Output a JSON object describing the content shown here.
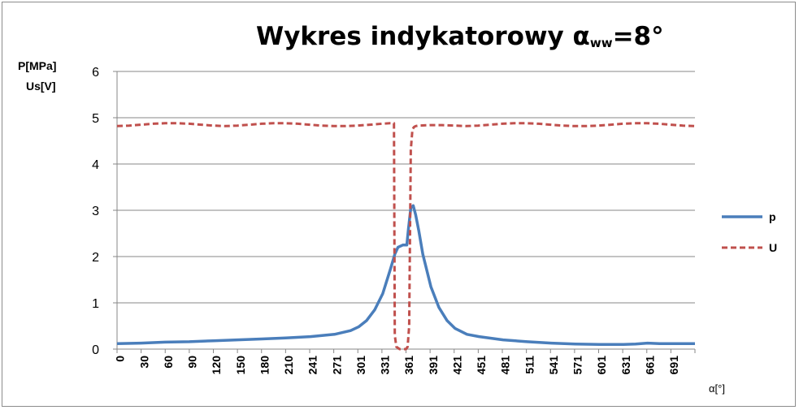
{
  "chart_data": {
    "type": "line",
    "title_main": "Wykres  indykatorowy ",
    "title_alpha": "α",
    "title_sub": "ww",
    "title_tail": "=8°",
    "ylabel_line1": "P[MPa]",
    "ylabel_line2": "Us[V]",
    "xlabel": "α[°]",
    "ylim": [
      0,
      6
    ],
    "yticks": [
      "0",
      "1",
      "2",
      "3",
      "4",
      "5",
      "6"
    ],
    "xlim": [
      0,
      720
    ],
    "xtick_labels": [
      "0",
      "30",
      "60",
      "90",
      "120",
      "150",
      "180",
      "210",
      "241",
      "271",
      "301",
      "331",
      "361",
      "391",
      "421",
      "451",
      "481",
      "511",
      "541",
      "571",
      "601",
      "631",
      "661",
      "691"
    ],
    "grid": true,
    "legend_position": "right",
    "series": [
      {
        "name": "p",
        "color": "#4a7ebb",
        "style": "solid",
        "x": [
          0,
          30,
          60,
          90,
          120,
          150,
          180,
          210,
          241,
          271,
          291,
          301,
          311,
          321,
          331,
          341,
          346,
          350,
          356,
          358,
          361,
          363,
          366,
          369,
          372,
          376,
          381,
          391,
          401,
          411,
          421,
          436,
          451,
          481,
          511,
          541,
          571,
          601,
          631,
          646,
          661,
          676,
          691,
          720
        ],
        "values": [
          0.12,
          0.13,
          0.15,
          0.16,
          0.18,
          0.2,
          0.22,
          0.24,
          0.27,
          0.32,
          0.4,
          0.48,
          0.62,
          0.85,
          1.2,
          1.75,
          2.05,
          2.2,
          2.25,
          2.25,
          2.25,
          2.6,
          3.05,
          3.1,
          2.9,
          2.55,
          2.05,
          1.35,
          0.9,
          0.62,
          0.45,
          0.32,
          0.27,
          0.2,
          0.16,
          0.13,
          0.11,
          0.1,
          0.1,
          0.11,
          0.13,
          0.12,
          0.12,
          0.12
        ]
      },
      {
        "name": "U",
        "color": "#c0504d",
        "style": "dashed",
        "x": [
          0,
          15,
          30,
          45,
          60,
          75,
          90,
          105,
          120,
          135,
          150,
          165,
          180,
          195,
          210,
          225,
          240,
          255,
          270,
          285,
          300,
          315,
          330,
          340,
          345,
          346,
          348,
          352,
          358,
          360,
          362,
          364,
          366,
          368,
          370,
          372,
          375,
          390,
          405,
          420,
          435,
          450,
          465,
          480,
          495,
          510,
          525,
          540,
          555,
          570,
          585,
          600,
          615,
          630,
          645,
          660,
          675,
          690,
          705,
          720
        ],
        "values": [
          4.82,
          4.83,
          4.85,
          4.87,
          4.88,
          4.88,
          4.87,
          4.85,
          4.83,
          4.82,
          4.83,
          4.85,
          4.87,
          4.88,
          4.88,
          4.87,
          4.85,
          4.83,
          4.82,
          4.82,
          4.83,
          4.85,
          4.87,
          4.88,
          4.88,
          0.3,
          0.05,
          0.0,
          0.0,
          0.0,
          0.05,
          0.5,
          4.3,
          4.75,
          4.8,
          4.82,
          4.83,
          4.84,
          4.84,
          4.83,
          4.82,
          4.83,
          4.85,
          4.87,
          4.88,
          4.88,
          4.87,
          4.85,
          4.83,
          4.82,
          4.82,
          4.83,
          4.85,
          4.87,
          4.88,
          4.88,
          4.87,
          4.85,
          4.83,
          4.82
        ]
      }
    ]
  }
}
